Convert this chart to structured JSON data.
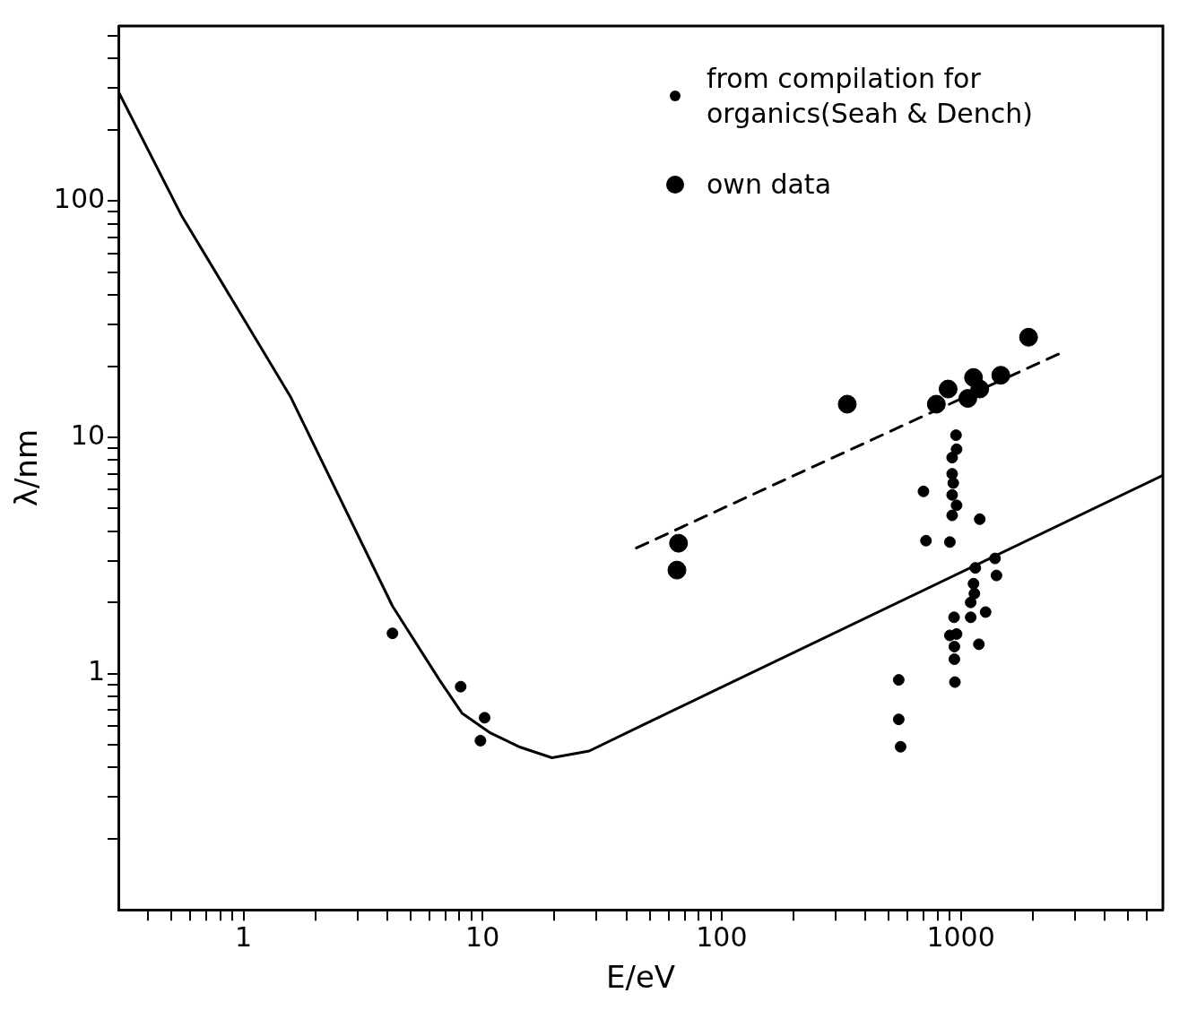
{
  "chart_data": {
    "type": "scatter",
    "xlabel": "E/eV",
    "ylabel": "λ/nm",
    "log": "xy",
    "legend": "top right",
    "marker": "circle",
    "xlim": [
      0.3,
      7000
    ],
    "ylim": [
      0.1,
      550
    ],
    "xticks": [
      {
        "value": 0.4,
        "label": null
      },
      {
        "value": 0.5,
        "label": null
      },
      {
        "value": 0.6,
        "label": null
      },
      {
        "value": 0.7,
        "label": null
      },
      {
        "value": 0.8,
        "label": null
      },
      {
        "value": 0.9,
        "label": null
      },
      1,
      {
        "value": 2,
        "label": null
      },
      {
        "value": 3,
        "label": null
      },
      {
        "value": 4,
        "label": null
      },
      {
        "value": 5,
        "label": null
      },
      {
        "value": 6,
        "label": null
      },
      {
        "value": 7,
        "label": null
      },
      {
        "value": 8,
        "label": null
      },
      {
        "value": 9,
        "label": null
      },
      10,
      {
        "value": 20,
        "label": null
      },
      {
        "value": 30,
        "label": null
      },
      {
        "value": 40,
        "label": null
      },
      {
        "value": 50,
        "label": null
      },
      {
        "value": 60,
        "label": null
      },
      {
        "value": 70,
        "label": null
      },
      {
        "value": 80,
        "label": null
      },
      {
        "value": 90,
        "label": null
      },
      100,
      {
        "value": 200,
        "label": null
      },
      {
        "value": 300,
        "label": null
      },
      {
        "value": 400,
        "label": null
      },
      {
        "value": 500,
        "label": null
      },
      {
        "value": 600,
        "label": null
      },
      {
        "value": 700,
        "label": null
      },
      {
        "value": 800,
        "label": null
      },
      {
        "value": 900,
        "label": null
      },
      1000,
      {
        "value": 2000,
        "label": null
      },
      {
        "value": 3000,
        "label": null
      },
      {
        "value": 4000,
        "label": null
      },
      {
        "value": 5000,
        "label": null
      },
      {
        "value": 6000,
        "label": null
      }
    ],
    "yticks": [
      {
        "value": 0.2,
        "label": null
      },
      {
        "value": 0.3,
        "label": null
      },
      {
        "value": 0.4,
        "label": null
      },
      {
        "value": 0.5,
        "label": null
      },
      {
        "value": 0.6,
        "label": null
      },
      {
        "value": 0.7,
        "label": null
      },
      {
        "value": 0.8,
        "label": null
      },
      {
        "value": 0.9,
        "label": null
      },
      1,
      {
        "value": 2,
        "label": null
      },
      {
        "value": 3,
        "label": null
      },
      {
        "value": 4,
        "label": null
      },
      {
        "value": 5,
        "label": null
      },
      {
        "value": 6,
        "label": null
      },
      {
        "value": 7,
        "label": null
      },
      {
        "value": 8,
        "label": null
      },
      {
        "value": 9,
        "label": null
      },
      10,
      {
        "value": 20,
        "label": null
      },
      {
        "value": 30,
        "label": null
      },
      {
        "value": 40,
        "label": null
      },
      {
        "value": 50,
        "label": null
      },
      {
        "value": 60,
        "label": null
      },
      {
        "value": 70,
        "label": null
      },
      {
        "value": 80,
        "label": null
      },
      {
        "value": 90,
        "label": null
      },
      100,
      {
        "value": 200,
        "label": null
      },
      {
        "value": 300,
        "label": null
      },
      {
        "value": 400,
        "label": null
      },
      {
        "value": 500,
        "label": null
      }
    ],
    "series": [
      {
        "type": "line",
        "color": "#000000",
        "marker": "none",
        "line_style": "solid",
        "x": [
          0.3,
          0.55,
          1.57,
          4.2,
          6.6,
          8.2,
          10.8,
          14.2,
          19.5,
          27.9,
          47.5,
          94,
          7000
        ],
        "values": [
          290,
          87,
          14.9,
          1.93,
          0.94,
          0.68,
          0.56,
          0.49,
          0.44,
          0.47,
          0.61,
          0.85,
          6.9
        ]
      },
      {
        "type": "line",
        "color": "#000000",
        "marker": "none",
        "line_style": "dashed",
        "x": [
          44,
          2560
        ],
        "values": [
          3.4,
          22.5
        ]
      },
      {
        "name": "from compilation for organics(Seah & Dench)",
        "color": "#000000",
        "x": [
          4.2,
          8.1,
          10.2,
          9.8,
          955,
          960,
          920,
          920,
          930,
          920,
          960,
          920,
          698,
          1200,
          715,
          900,
          1390,
          1410,
          1150,
          1130,
          1140,
          1100,
          1270,
          1100,
          937,
          900,
          960,
          940,
          940,
          1190,
          550,
          945,
          550,
          560
        ],
        "values": [
          1.48,
          0.88,
          0.65,
          0.52,
          10.2,
          8.9,
          8.2,
          7.0,
          6.4,
          5.7,
          5.15,
          4.67,
          5.9,
          4.5,
          3.65,
          3.6,
          3.07,
          2.6,
          2.8,
          2.4,
          2.18,
          2.0,
          1.82,
          1.73,
          1.73,
          1.45,
          1.47,
          1.3,
          1.15,
          1.33,
          0.94,
          0.92,
          0.64,
          0.49
        ]
      },
      {
        "name": "own data",
        "color": "#000000",
        "x": [
          66,
          65,
          335,
          790,
          885,
          1070,
          1130,
          1200,
          1470,
          1920
        ],
        "values": [
          3.56,
          2.74,
          13.8,
          13.8,
          16.0,
          14.6,
          17.9,
          16.0,
          18.3,
          26.5
        ]
      }
    ]
  }
}
